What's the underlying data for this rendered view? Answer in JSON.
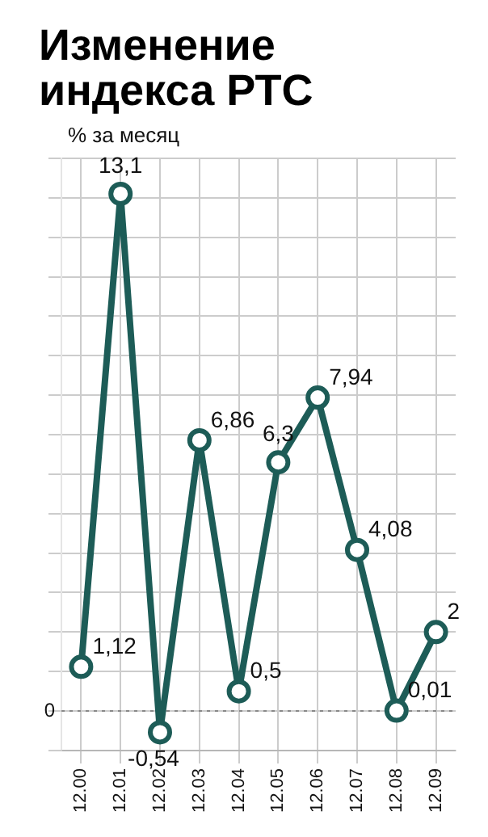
{
  "chart_data": {
    "type": "line",
    "title": "Изменение индекса РТС",
    "ylabel": "% за месяц",
    "categories": [
      "12.00",
      "12.01",
      "12.02",
      "12.03",
      "12.04",
      "12.05",
      "12.06",
      "12.07",
      "12.08",
      "12.09"
    ],
    "values": [
      1.12,
      13.1,
      -0.54,
      6.86,
      0.5,
      6.3,
      7.94,
      4.08,
      0.01,
      2
    ],
    "value_labels": [
      "1,12",
      "13,1",
      "-0,54",
      "6,86",
      "0,5",
      "6,3",
      "7,94",
      "4,08",
      "0,01",
      "2"
    ],
    "color": "#1d5c57",
    "marker": "circle",
    "line_style": "solid",
    "grid": true,
    "legend": false,
    "ref_lines": [
      {
        "axis": "y",
        "value": 0,
        "label": "0",
        "color": "#888888",
        "line_style": "dotted"
      }
    ]
  }
}
